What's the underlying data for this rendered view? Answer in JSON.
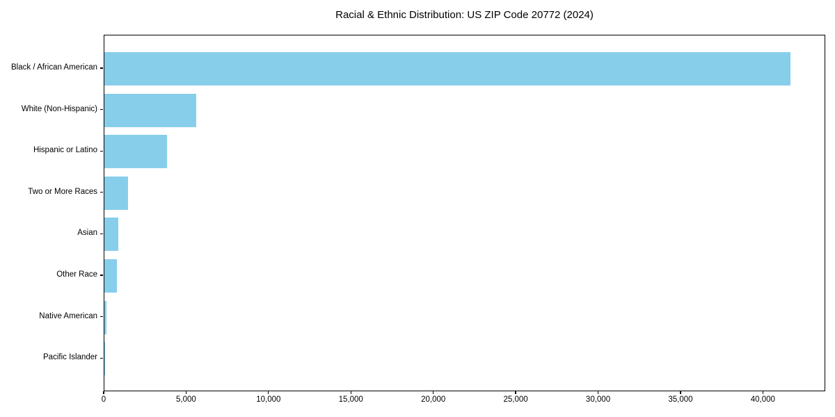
{
  "chart_data": {
    "type": "bar",
    "orientation": "horizontal",
    "title": "Racial & Ethnic Distribution: US ZIP Code 20772 (2024)",
    "categories": [
      "Black / African American",
      "White (Non-Hispanic)",
      "Hispanic or Latino",
      "Two or More Races",
      "Asian",
      "Other Race",
      "Native American",
      "Pacific Islander"
    ],
    "values": [
      41700,
      5570,
      3800,
      1430,
      840,
      760,
      130,
      20
    ],
    "xlabel": "",
    "ylabel": "",
    "xlim": [
      0,
      43785
    ],
    "xticks": [
      0,
      5000,
      10000,
      15000,
      20000,
      25000,
      30000,
      35000,
      40000
    ],
    "xtick_labels": [
      "0",
      "5,000",
      "10,000",
      "15,000",
      "20,000",
      "25,000",
      "30,000",
      "35,000",
      "40,000"
    ],
    "bar_color": "#87CEEB",
    "frame_color": "#000000",
    "grid": false,
    "legend": null
  }
}
